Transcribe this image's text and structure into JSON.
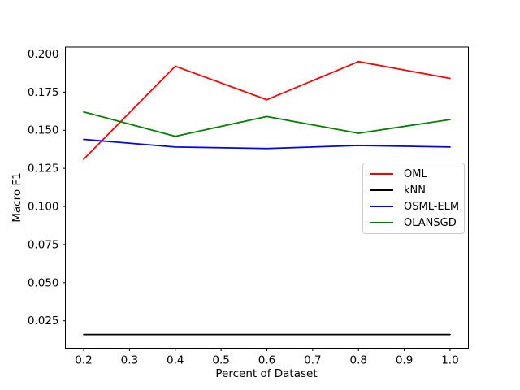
{
  "chart_data": {
    "type": "line",
    "title": "",
    "xlabel": "Percent of Dataset",
    "ylabel": "Macro F1",
    "x": [
      0.2,
      0.4,
      0.6,
      0.8,
      1.0
    ],
    "series": [
      {
        "name": "OML",
        "color": "#ff0000",
        "values": [
          0.131,
          0.192,
          0.17,
          0.195,
          0.184
        ]
      },
      {
        "name": "kNN",
        "color": "#000000",
        "values": [
          0.016,
          0.016,
          0.016,
          0.016,
          0.016
        ]
      },
      {
        "name": "OSML-ELM",
        "color": "#0000ff",
        "values": [
          0.144,
          0.139,
          0.138,
          0.14,
          0.139
        ]
      },
      {
        "name": "OLANSGD",
        "color": "#008000",
        "values": [
          0.162,
          0.146,
          0.159,
          0.148,
          0.157
        ]
      }
    ],
    "xlim": [
      0.16,
      1.04
    ],
    "ylim": [
      0.007,
      0.2045
    ],
    "x_ticks": [
      0.2,
      0.3,
      0.4,
      0.5,
      0.6,
      0.7,
      0.8,
      0.9,
      1.0
    ],
    "x_ticklabels": [
      "0.2",
      "0.3",
      "0.4",
      "0.5",
      "0.6",
      "0.7",
      "0.8",
      "0.9",
      "1.0"
    ],
    "y_ticks": [
      0.025,
      0.05,
      0.075,
      0.1,
      0.125,
      0.15,
      0.175,
      0.2
    ],
    "y_ticklabels": [
      "0.025",
      "0.050",
      "0.075",
      "0.100",
      "0.125",
      "0.150",
      "0.175",
      "0.200"
    ],
    "grid": false,
    "legend_position": "center right",
    "line_width": 1.8
  }
}
